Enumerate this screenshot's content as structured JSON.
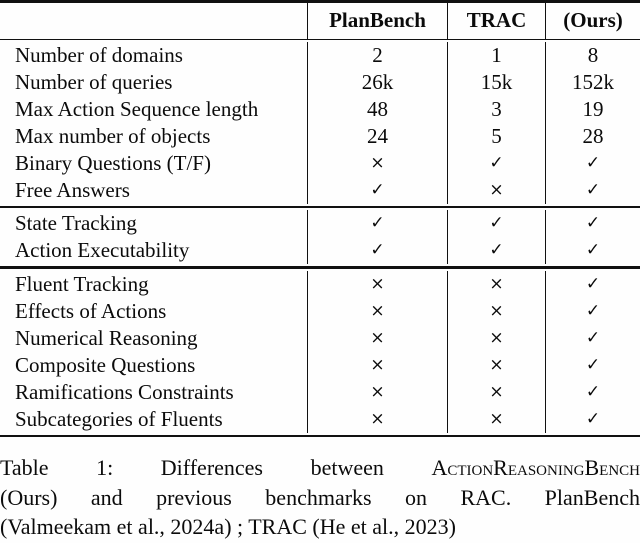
{
  "table": {
    "columns": [
      "",
      "PlanBench",
      "TRAC",
      "(Ours)"
    ],
    "symbols": {
      "check": "✓",
      "cross": "×"
    },
    "groups": [
      {
        "rows": [
          {
            "label": "Number of domains",
            "values": [
              "2",
              "1",
              "8"
            ]
          },
          {
            "label": "Number of queries",
            "values": [
              "26k",
              "15k",
              "152k"
            ]
          },
          {
            "label": "Max Action Sequence length",
            "values": [
              "48",
              "3",
              "19"
            ]
          },
          {
            "label": "Max number of objects",
            "values": [
              "24",
              "5",
              "28"
            ]
          },
          {
            "label": "Binary Questions (T/F)",
            "values": [
              "×",
              "✓",
              "✓"
            ]
          },
          {
            "label": "Free Answers",
            "values": [
              "✓",
              "×",
              "✓"
            ]
          }
        ]
      },
      {
        "rows": [
          {
            "label": "State Tracking",
            "values": [
              "✓",
              "✓",
              "✓"
            ]
          },
          {
            "label": "Action Executability",
            "values": [
              "✓",
              "✓",
              "✓"
            ]
          }
        ]
      },
      {
        "rows": [
          {
            "label": "Fluent Tracking",
            "values": [
              "×",
              "×",
              "✓"
            ]
          },
          {
            "label": "Effects of Actions",
            "values": [
              "×",
              "×",
              "✓"
            ]
          },
          {
            "label": "Numerical Reasoning",
            "values": [
              "×",
              "×",
              "✓"
            ]
          },
          {
            "label": "Composite Questions",
            "values": [
              "×",
              "×",
              "✓"
            ]
          },
          {
            "label": "Ramifications Constraints",
            "values": [
              "×",
              "×",
              "✓"
            ]
          },
          {
            "label": "Subcategories of Fluents",
            "values": [
              "×",
              "×",
              "✓"
            ]
          }
        ]
      }
    ]
  },
  "caption": {
    "line1_pre": "Table 1: Differences between ",
    "line1_smallcaps": "ActionReasoningBench",
    "line2": "(Ours) and previous benchmarks on RAC. PlanBench",
    "line3": "(Valmeekam et al., 2024a) ; TRAC (He et al., 2023)"
  }
}
